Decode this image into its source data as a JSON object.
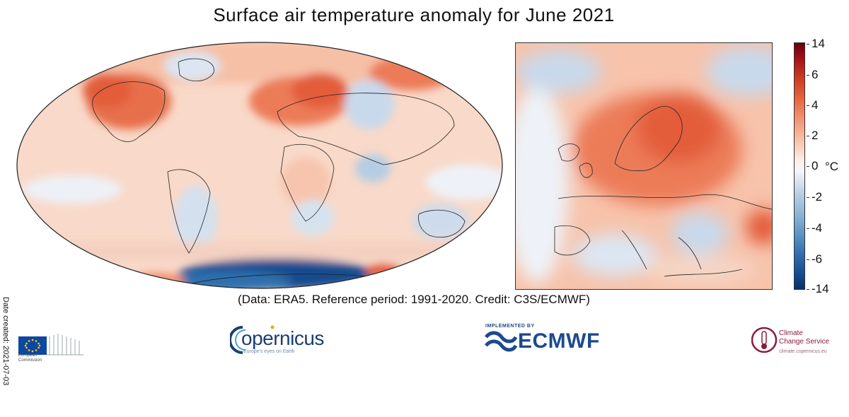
{
  "title": "Surface air temperature anomaly for June 2021",
  "credit": "(Data: ERA5.  Reference period: 1991-2020.  Credit: C3S/ECMWF)",
  "date_created": "Date created: 2021-07-03",
  "colorbar": {
    "unit": "°C",
    "ticks": [
      "14",
      "6",
      "4",
      "2",
      "0",
      "-2",
      "-4",
      "-6",
      "-14"
    ]
  },
  "logos": {
    "european_commission": {
      "line1": "European",
      "line2": "Commission"
    },
    "copernicus": {
      "word": "opernicus",
      "tagline": "Europe's eyes on Earth"
    },
    "ecmwf": {
      "top": "IMPLEMENTED BY",
      "word": "ECMWF"
    },
    "c3s": {
      "line1": "Climate",
      "line2": "Change Service",
      "line3": "climate.copernicus.eu"
    }
  },
  "colors": {
    "warm": "#e5623c",
    "warm_light": "#f7b99e",
    "neutral": "#f7f4f3",
    "cool_light": "#b4cde4",
    "cool": "#2f6fad",
    "cool_deep": "#154c8f"
  }
}
